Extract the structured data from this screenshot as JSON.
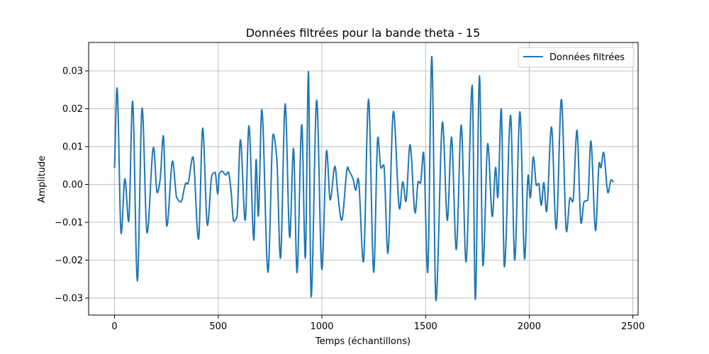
{
  "chart_data": {
    "type": "line",
    "title": "Données filtrées pour la bande theta - 15",
    "xlabel": "Temps (échantillons)",
    "ylabel": "Amplitude",
    "xlim": [
      -125,
      2525
    ],
    "ylim": [
      -0.0345,
      0.0375
    ],
    "xticks": [
      0,
      500,
      1000,
      1500,
      2000,
      2500
    ],
    "xtick_labels": [
      "0",
      "500",
      "1000",
      "1500",
      "2000",
      "2500"
    ],
    "yticks": [
      -0.03,
      -0.02,
      -0.01,
      0.0,
      0.01,
      0.02,
      0.03
    ],
    "ytick_labels": [
      "−0.03",
      "−0.02",
      "−0.01",
      "0.00",
      "0.01",
      "0.02",
      "0.03"
    ],
    "grid": true,
    "legend_position": "top-right",
    "series": [
      {
        "name": "Données filtrées",
        "color": "#1f77b4",
        "extrema": [
          [
            0,
            0.0045
          ],
          [
            12,
            0.0255
          ],
          [
            32,
            -0.013
          ],
          [
            50,
            0.0015
          ],
          [
            68,
            -0.0098
          ],
          [
            87,
            0.022
          ],
          [
            110,
            -0.0255
          ],
          [
            133,
            0.0202
          ],
          [
            157,
            -0.0128
          ],
          [
            188,
            0.0098
          ],
          [
            206,
            -0.0022
          ],
          [
            220,
            0.0013
          ],
          [
            235,
            0.0129
          ],
          [
            252,
            -0.011
          ],
          [
            280,
            0.0062
          ],
          [
            300,
            -0.0035
          ],
          [
            320,
            -0.0046
          ],
          [
            345,
            0.0004
          ],
          [
            352,
            0.0001
          ],
          [
            378,
            0.0073
          ],
          [
            405,
            -0.0145
          ],
          [
            425,
            0.0149
          ],
          [
            448,
            -0.0108
          ],
          [
            470,
            0.0025
          ],
          [
            485,
            0.0032
          ],
          [
            498,
            -0.0025
          ],
          [
            505,
            0.0028
          ],
          [
            518,
            0.0035
          ],
          [
            537,
            0.0025
          ],
          [
            548,
            0.0033
          ],
          [
            560,
            -0.0006
          ],
          [
            575,
            -0.0097
          ],
          [
            590,
            -0.0087
          ],
          [
            607,
            0.0118
          ],
          [
            630,
            -0.0095
          ],
          [
            648,
            0.0155
          ],
          [
            672,
            -0.0147
          ],
          [
            683,
            0.0066
          ],
          [
            693,
            -0.0084
          ],
          [
            710,
            0.0198
          ],
          [
            740,
            -0.0232
          ],
          [
            765,
            0.0133
          ],
          [
            782,
            0.0072
          ],
          [
            800,
            -0.0195
          ],
          [
            823,
            0.0213
          ],
          [
            845,
            -0.014
          ],
          [
            863,
            0.0095
          ],
          [
            880,
            -0.0233
          ],
          [
            903,
            0.0158
          ],
          [
            920,
            -0.0195
          ],
          [
            935,
            0.0298
          ],
          [
            948,
            -0.0297
          ],
          [
            975,
            0.0223
          ],
          [
            1000,
            -0.0225
          ],
          [
            1023,
            0.009
          ],
          [
            1040,
            -0.0041
          ],
          [
            1063,
            0.0048
          ],
          [
            1078,
            -0.0032
          ],
          [
            1095,
            -0.0095
          ],
          [
            1125,
            0.0046
          ],
          [
            1130,
            0.0038
          ],
          [
            1150,
            0.0015
          ],
          [
            1163,
            -0.0015
          ],
          [
            1175,
            0.0016
          ],
          [
            1200,
            -0.0205
          ],
          [
            1225,
            0.0225
          ],
          [
            1250,
            -0.0232
          ],
          [
            1270,
            0.0125
          ],
          [
            1285,
            0.0043
          ],
          [
            1298,
            0.0052
          ],
          [
            1318,
            -0.0182
          ],
          [
            1345,
            0.0193
          ],
          [
            1375,
            -0.0065
          ],
          [
            1390,
            0.0007
          ],
          [
            1405,
            -0.0045
          ],
          [
            1425,
            0.0105
          ],
          [
            1450,
            -0.0075
          ],
          [
            1465,
            0.0008
          ],
          [
            1475,
            0.0003
          ],
          [
            1490,
            0.0085
          ],
          [
            1510,
            -0.0233
          ],
          [
            1530,
            0.0338
          ],
          [
            1550,
            -0.0307
          ],
          [
            1582,
            0.0165
          ],
          [
            1605,
            -0.0095
          ],
          [
            1625,
            0.0125
          ],
          [
            1648,
            -0.0172
          ],
          [
            1672,
            0.0157
          ],
          [
            1695,
            -0.0205
          ],
          [
            1725,
            0.0262
          ],
          [
            1740,
            -0.0304
          ],
          [
            1760,
            0.0287
          ],
          [
            1777,
            -0.0215
          ],
          [
            1800,
            0.0108
          ],
          [
            1822,
            -0.0085
          ],
          [
            1838,
            0.0045
          ],
          [
            1848,
            -0.0035
          ],
          [
            1865,
            0.02
          ],
          [
            1880,
            -0.0218
          ],
          [
            1910,
            0.0183
          ],
          [
            1930,
            -0.02
          ],
          [
            1955,
            0.0192
          ],
          [
            1978,
            -0.0197
          ],
          [
            1995,
            0.0025
          ],
          [
            2005,
            -0.0035
          ],
          [
            2020,
            0.0073
          ],
          [
            2035,
            -0.0003
          ],
          [
            2045,
            0.0003
          ],
          [
            2058,
            -0.0055
          ],
          [
            2070,
            0.0005
          ],
          [
            2083,
            -0.0072
          ],
          [
            2107,
            0.0152
          ],
          [
            2130,
            -0.0118
          ],
          [
            2155,
            0.0225
          ],
          [
            2180,
            -0.0125
          ],
          [
            2197,
            -0.0035
          ],
          [
            2210,
            -0.0046
          ],
          [
            2230,
            0.0143
          ],
          [
            2250,
            -0.0103
          ],
          [
            2265,
            -0.0045
          ],
          [
            2282,
            -0.0042
          ],
          [
            2297,
            0.0115
          ],
          [
            2320,
            -0.0122
          ],
          [
            2338,
            0.0058
          ],
          [
            2345,
            0.0044
          ],
          [
            2358,
            0.0085
          ],
          [
            2380,
            -0.0022
          ],
          [
            2395,
            0.0012
          ],
          [
            2405,
            0.0007
          ]
        ]
      }
    ]
  }
}
